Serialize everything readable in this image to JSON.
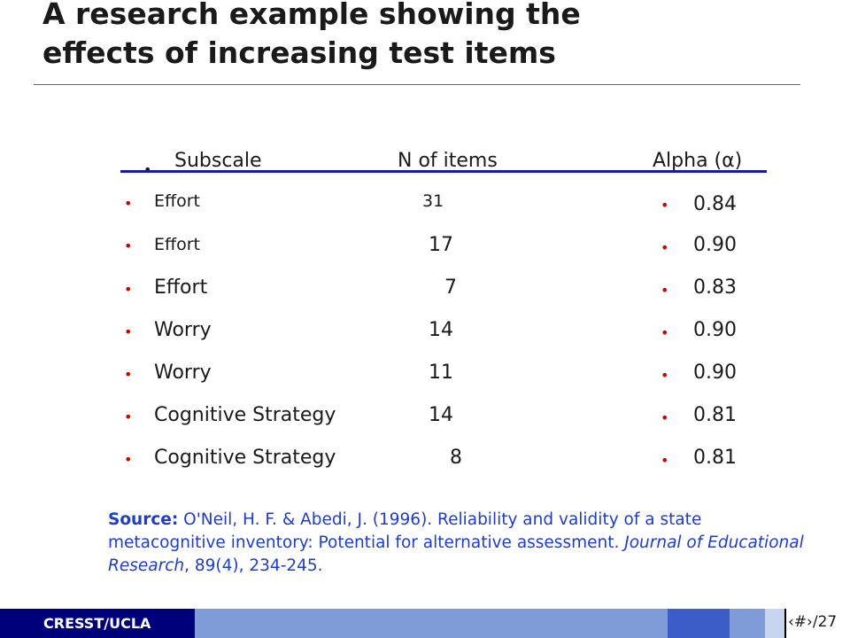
{
  "title": "A research example showing the\neffects of increasing test items",
  "table": {
    "headers": {
      "subscale": "Subscale",
      "n_items": "N of items",
      "alpha": "Alpha (α)"
    },
    "rows": [
      {
        "subscale": "Effort",
        "n": "31",
        "alpha": "0.84"
      },
      {
        "subscale": "Effort",
        "n": "17",
        "alpha": "0.90"
      },
      {
        "subscale": "Effort",
        "n": "7",
        "alpha": "0.83"
      },
      {
        "subscale": "Worry",
        "n": "14",
        "alpha": "0.90"
      },
      {
        "subscale": "Worry",
        "n": "11",
        "alpha": "0.90"
      },
      {
        "subscale": "Cognitive Strategy",
        "n": "14",
        "alpha": "0.81"
      },
      {
        "subscale": "Cognitive Strategy",
        "n": "8",
        "alpha": "0.81"
      }
    ]
  },
  "source": {
    "label": "Source:",
    "text_before": " O'Neil, H. F. & Abedi, J. (1996).  Reliability and validity of a state metacognitive inventory: Potential for alternative assessment.  ",
    "journal": "Journal of Educational Research",
    "text_after": ", 89(4), 234-245."
  },
  "footer": {
    "label": "CRESST/UCLA",
    "page": "‹#›/27"
  },
  "colors": {
    "bullet": "#cc0000",
    "source_text": "#1e3ec8",
    "header_rule": "#1a1aa0",
    "footer_dark": "#00007a",
    "footer_mid": "#3c5cc8",
    "footer_light": "#7f9bd8"
  }
}
